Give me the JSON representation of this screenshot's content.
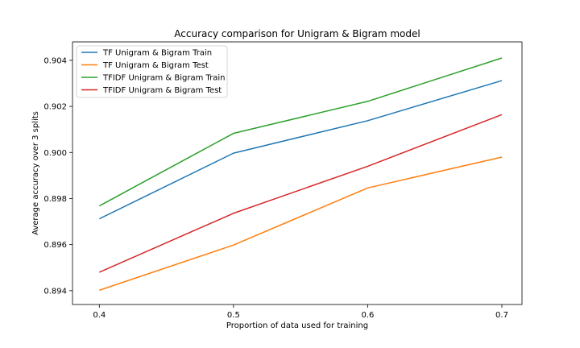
{
  "chart_data": {
    "type": "line",
    "title": "Accuracy comparison for Unigram & Bigram model",
    "xlabel": "Proportion of data used for training",
    "ylabel": "Average accuracy over 3 splits",
    "x": [
      0.4,
      0.5,
      0.6,
      0.7
    ],
    "xlim": [
      0.38,
      0.715
    ],
    "ylim": [
      0.8934,
      0.9048
    ],
    "x_ticks": [
      "0.4",
      "0.5",
      "0.6",
      "0.7"
    ],
    "y_ticks": [
      "0.894",
      "0.896",
      "0.898",
      "0.900",
      "0.902",
      "0.904"
    ],
    "y_tick_values": [
      0.894,
      0.896,
      0.898,
      0.9,
      0.902,
      0.904
    ],
    "grid": false,
    "legend_position": "top-left",
    "series": [
      {
        "name": "TF Unigram & Bigram Train",
        "color": "#1f77b4",
        "values": [
          0.89712,
          0.89997,
          0.90138,
          0.90312
        ]
      },
      {
        "name": "TF Unigram & Bigram Test",
        "color": "#ff7f0e",
        "values": [
          0.89402,
          0.89598,
          0.89846,
          0.8998
        ]
      },
      {
        "name": "TFIDF Unigram & Bigram Train",
        "color": "#2ca02c",
        "values": [
          0.89768,
          0.90083,
          0.90222,
          0.9041
        ]
      },
      {
        "name": "TFIDF Unigram & Bigram Test",
        "color": "#d62728",
        "values": [
          0.8948,
          0.89736,
          0.8994,
          0.90164
        ]
      }
    ]
  }
}
